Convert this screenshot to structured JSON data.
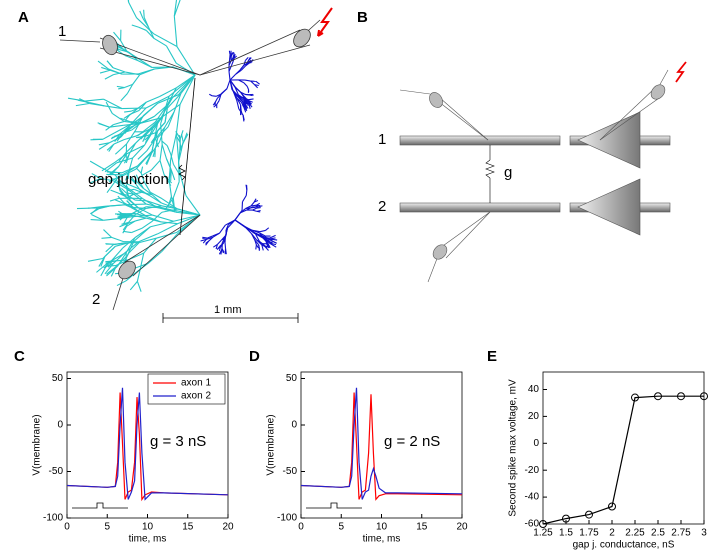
{
  "diagrams": {
    "a": {
      "label": "A",
      "cell_1": "1",
      "cell_2": "2",
      "junction": "gap junction",
      "scale": "1 mm"
    },
    "b": {
      "label": "B",
      "axon_1": "1",
      "axon_2": "2",
      "conductance": "g"
    }
  },
  "chart_data": [
    {
      "type": "line",
      "panel": "C",
      "xlabel": "time, ms",
      "ylabel": "V(membrane)",
      "annotation": "g = 3 nS",
      "x": [
        0,
        5,
        6,
        6.3,
        6.6,
        6.9,
        7.2,
        7.6,
        8,
        8.4,
        8.7,
        9,
        9.3,
        9.7,
        10.5,
        12,
        20
      ],
      "series": [
        {
          "name": "axon 1",
          "color": "#ff0000",
          "values": [
            -65,
            -67,
            -66,
            -40,
            35,
            -20,
            -80,
            -72,
            -70,
            -40,
            30,
            -10,
            -80,
            -75,
            -72,
            -73,
            -75
          ]
        },
        {
          "name": "axon 2",
          "color": "#2222cc",
          "values": [
            -65,
            -67,
            -66,
            -55,
            0,
            40,
            -40,
            -80,
            -72,
            -60,
            0,
            35,
            -30,
            -80,
            -73,
            -73,
            -75
          ]
        }
      ],
      "legend": "upper right",
      "xlim": [
        0,
        20
      ],
      "xticks": [
        0,
        5,
        10,
        15,
        20
      ],
      "ylim": [
        -100,
        57
      ],
      "yticks": [
        -100,
        -50,
        0,
        50
      ]
    },
    {
      "type": "line",
      "panel": "D",
      "xlabel": "time, ms",
      "ylabel": "V(membrane)",
      "annotation": "g = 2 nS",
      "x": [
        0,
        5,
        6,
        6.3,
        6.6,
        6.9,
        7.2,
        7.6,
        8,
        8.4,
        8.7,
        9,
        9.3,
        9.7,
        10.5,
        12,
        20
      ],
      "series": [
        {
          "color": "#ff0000",
          "values": [
            -65,
            -67,
            -66,
            -40,
            35,
            -20,
            -80,
            -72,
            -70,
            -30,
            33,
            -30,
            -80,
            -76,
            -74,
            -74,
            -75
          ]
        },
        {
          "color": "#2222cc",
          "values": [
            -65,
            -67,
            -66,
            -55,
            0,
            40,
            -40,
            -80,
            -72,
            -70,
            -55,
            -47,
            -55,
            -68,
            -73,
            -73,
            -74
          ]
        }
      ],
      "xlim": [
        0,
        20
      ],
      "xticks": [
        0,
        5,
        10,
        15,
        20
      ],
      "ylim": [
        -100,
        57
      ],
      "yticks": [
        -100,
        -50,
        0,
        50
      ]
    },
    {
      "type": "line",
      "panel": "E",
      "markers": "circle",
      "xlabel": "gap j. conductance, nS",
      "ylabel": "Second spike max voltage, mV",
      "x": [
        1.25,
        1.5,
        1.75,
        2,
        2.25,
        2.5,
        2.75,
        3
      ],
      "series": [
        {
          "color": "#000000",
          "values": [
            -60,
            -56,
            -53,
            -47,
            34,
            35,
            35,
            35
          ]
        }
      ],
      "xlim": [
        1.25,
        3
      ],
      "xticks": [
        1.25,
        1.5,
        1.75,
        2,
        2.25,
        2.5,
        2.75,
        3
      ],
      "ylim": [
        -60,
        53
      ],
      "yticks": [
        -60,
        -40,
        -20,
        0,
        20,
        40
      ]
    }
  ]
}
